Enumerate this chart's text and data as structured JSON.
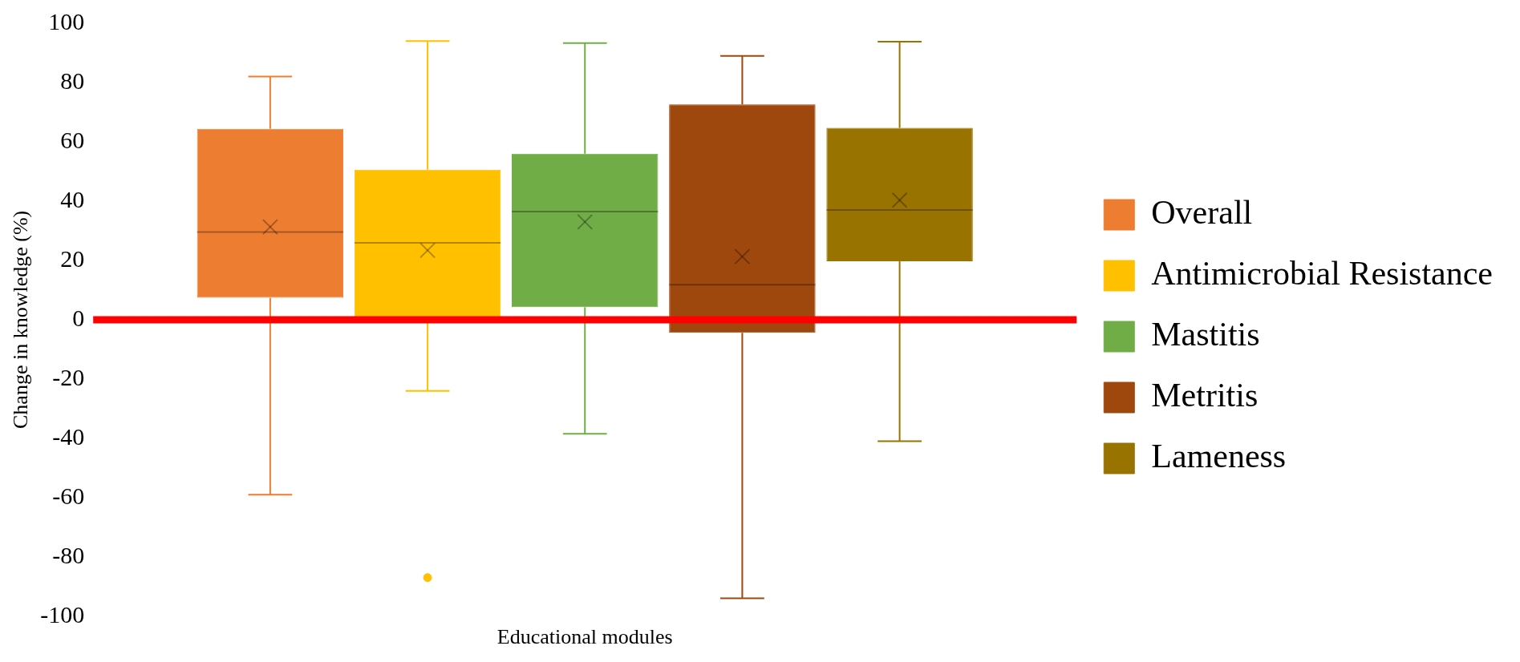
{
  "chart_data": {
    "type": "box",
    "xlabel": "Educational modules",
    "ylabel": "Change in knowledge (%)",
    "categories": [
      null
    ],
    "series": [
      {
        "name": "Overall",
        "color": "#ed7d31",
        "boxes": [
          {
            "low": -59,
            "q1": 7.4,
            "median": 29.6,
            "q3": 64.4,
            "high": 82,
            "mean": 31.3
          }
        ]
      },
      {
        "name": "Antimicrobial Resistance",
        "color": "#ffc000",
        "boxes": [
          {
            "low": -24,
            "q1": 0,
            "median": 25.9,
            "q3": 50.6,
            "high": 94,
            "mean": 23.4,
            "outliers": [
              -87
            ]
          }
        ]
      },
      {
        "name": "Mastitis",
        "color": "#70ad47",
        "boxes": [
          {
            "low": -38.5,
            "q1": 4.2,
            "median": 36.5,
            "q3": 56,
            "high": 93.3,
            "mean": 33
          }
        ]
      },
      {
        "name": "Metritis",
        "color": "#9e480e",
        "boxes": [
          {
            "low": -94,
            "q1": -4.4,
            "median": 11.8,
            "q3": 72.6,
            "high": 89,
            "mean": 21.3
          }
        ]
      },
      {
        "name": "Lameness",
        "color": "#997300",
        "boxes": [
          {
            "low": -41,
            "q1": 19.7,
            "median": 37,
            "q3": 64.7,
            "high": 93.8,
            "mean": 40.3
          }
        ]
      }
    ],
    "ylim": [
      -100,
      100
    ],
    "yticks": [
      -100,
      -80,
      -60,
      -40,
      -20,
      0,
      20,
      40,
      60,
      80,
      100
    ],
    "ref_lines": [
      {
        "axis": "y",
        "value": 0,
        "color": "#ff0000"
      }
    ],
    "grid": false,
    "legend": "right",
    "tick_labels": "y"
  }
}
